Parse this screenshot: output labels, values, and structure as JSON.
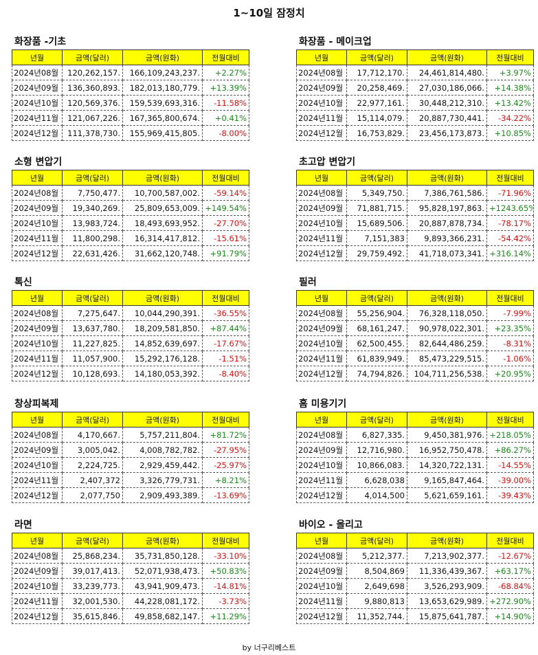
{
  "title": "1~10일 잠정치",
  "footer": "by 너구리베스트",
  "headers": [
    "년월",
    "금액(달러)",
    "금액(원화)",
    "전월대비"
  ],
  "months": [
    "2024년08월",
    "2024년09월",
    "2024년10월",
    "2024년11월",
    "2024년12월"
  ],
  "panels": [
    {
      "title": "화장품 -기초",
      "rows": [
        [
          "120,262,157.",
          "166,109,243,237.",
          "+2.27%"
        ],
        [
          "136,360,893.",
          "182,013,180,779.",
          "+13.39%"
        ],
        [
          "120,569,376.",
          "159,539,693,316.",
          "-11.58%"
        ],
        [
          "121,067,226.",
          "167,365,800,674.",
          "+0.41%"
        ],
        [
          "111,378,730.",
          "155,969,415,805.",
          "-8.00%"
        ]
      ]
    },
    {
      "title": "화장품 - 메이크업",
      "rows": [
        [
          "17,712,170.",
          "24,461,814,480.",
          "+3.97%"
        ],
        [
          "20,258,469.",
          "27,030,186,066.",
          "+14.38%"
        ],
        [
          "22,977,161.",
          "30,448,212,310.",
          "+13.42%"
        ],
        [
          "15,114,079.",
          "20,887,730,441.",
          "-34.22%"
        ],
        [
          "16,753,829.",
          "23,456,173,873.",
          "+10.85%"
        ]
      ]
    },
    {
      "title": "소형 변압기",
      "rows": [
        [
          "7,750,477.",
          "10,700,587,002.",
          "-59.14%"
        ],
        [
          "19,340,269.",
          "25,809,653,009.",
          "+149.54%"
        ],
        [
          "13,983,724.",
          "18,493,693,952.",
          "-27.70%"
        ],
        [
          "11,800,298.",
          "16,314,417,812.",
          "-15.61%"
        ],
        [
          "22,631,426.",
          "31,662,120,748.",
          "+91.79%"
        ]
      ]
    },
    {
      "title": "초고압 변압기",
      "rows": [
        [
          "5,349,750.",
          "7,386,761,586.",
          "-71.96%"
        ],
        [
          "71,881,715.",
          "95,828,197,863.",
          "+1243.65%"
        ],
        [
          "15,689,506.",
          "20,887,878,734.",
          "-78.17%"
        ],
        [
          "7,151,383",
          "9,893,366,231.",
          "-54.42%"
        ],
        [
          "29,759,492.",
          "41,718,073,341.",
          "+316.14%"
        ]
      ]
    },
    {
      "title": "톡신",
      "rows": [
        [
          "7,275,647.",
          "10,044,290,391.",
          "-36.55%"
        ],
        [
          "13,637,780.",
          "18,209,581,850.",
          "+87.44%"
        ],
        [
          "11,227,825.",
          "14,852,639,697.",
          "-17.67%"
        ],
        [
          "11,057,900.",
          "15,292,176,128.",
          "-1.51%"
        ],
        [
          "10,128,693.",
          "14,180,053,392.",
          "-8.40%"
        ]
      ]
    },
    {
      "title": "필러",
      "rows": [
        [
          "55,256,904.",
          "76,328,118,050.",
          "-7.99%"
        ],
        [
          "68,161,247.",
          "90,978,022,301.",
          "+23.35%"
        ],
        [
          "62,500,455.",
          "82,644,486,259.",
          "-8.31%"
        ],
        [
          "61,839,949.",
          "85,473,229,515.",
          "-1.06%"
        ],
        [
          "74,794,826.",
          "104,711,256,538.",
          "+20.95%"
        ]
      ]
    },
    {
      "title": "창상피복제",
      "rows": [
        [
          "4,170,667.",
          "5,757,211,804.",
          "+81.72%"
        ],
        [
          "3,005,042.",
          "4,008,782,782.",
          "-27.95%"
        ],
        [
          "2,224,725.",
          "2,929,459,442.",
          "-25.97%"
        ],
        [
          "2,407,372",
          "3,326,779,731.",
          "+8.21%"
        ],
        [
          "2,077,750",
          "2,909,493,389.",
          "-13.69%"
        ]
      ]
    },
    {
      "title": "홈 미용기기",
      "rows": [
        [
          "6,827,335.",
          "9,450,381,976.",
          "+218.05%"
        ],
        [
          "12,716,980.",
          "16,952,750,478.",
          "+86.27%"
        ],
        [
          "10,866,083.",
          "14,320,722,131.",
          "-14.55%"
        ],
        [
          "6,628,038",
          "9,165,847,464.",
          "-39.00%"
        ],
        [
          "4,014,500",
          "5,621,659,161.",
          "-39.43%"
        ]
      ]
    },
    {
      "title": "라면",
      "rows": [
        [
          "25,868,234.",
          "35,731,850,128.",
          "-33.10%"
        ],
        [
          "39,017,413.",
          "52,071,938,473.",
          "+50.83%"
        ],
        [
          "33,239,773.",
          "43,941,909,473.",
          "-14.81%"
        ],
        [
          "32,001,530.",
          "44,228,081,172.",
          "-3.73%"
        ],
        [
          "35,615,846.",
          "49,858,682,147.",
          "+11.29%"
        ]
      ]
    },
    {
      "title": "바이오 - 올리고",
      "rows": [
        [
          "5,212,377.",
          "7,213,902,377.",
          "-12.67%"
        ],
        [
          "8,504,869",
          "11,336,439,367.",
          "+63.17%"
        ],
        [
          "2,649,698",
          "3,526,293,909.",
          "-68.84%"
        ],
        [
          "9,880,813",
          "13,653,629,989.",
          "+272.90%"
        ],
        [
          "11,352,744.",
          "15,875,641,787.",
          "+14.90%"
        ]
      ]
    }
  ]
}
